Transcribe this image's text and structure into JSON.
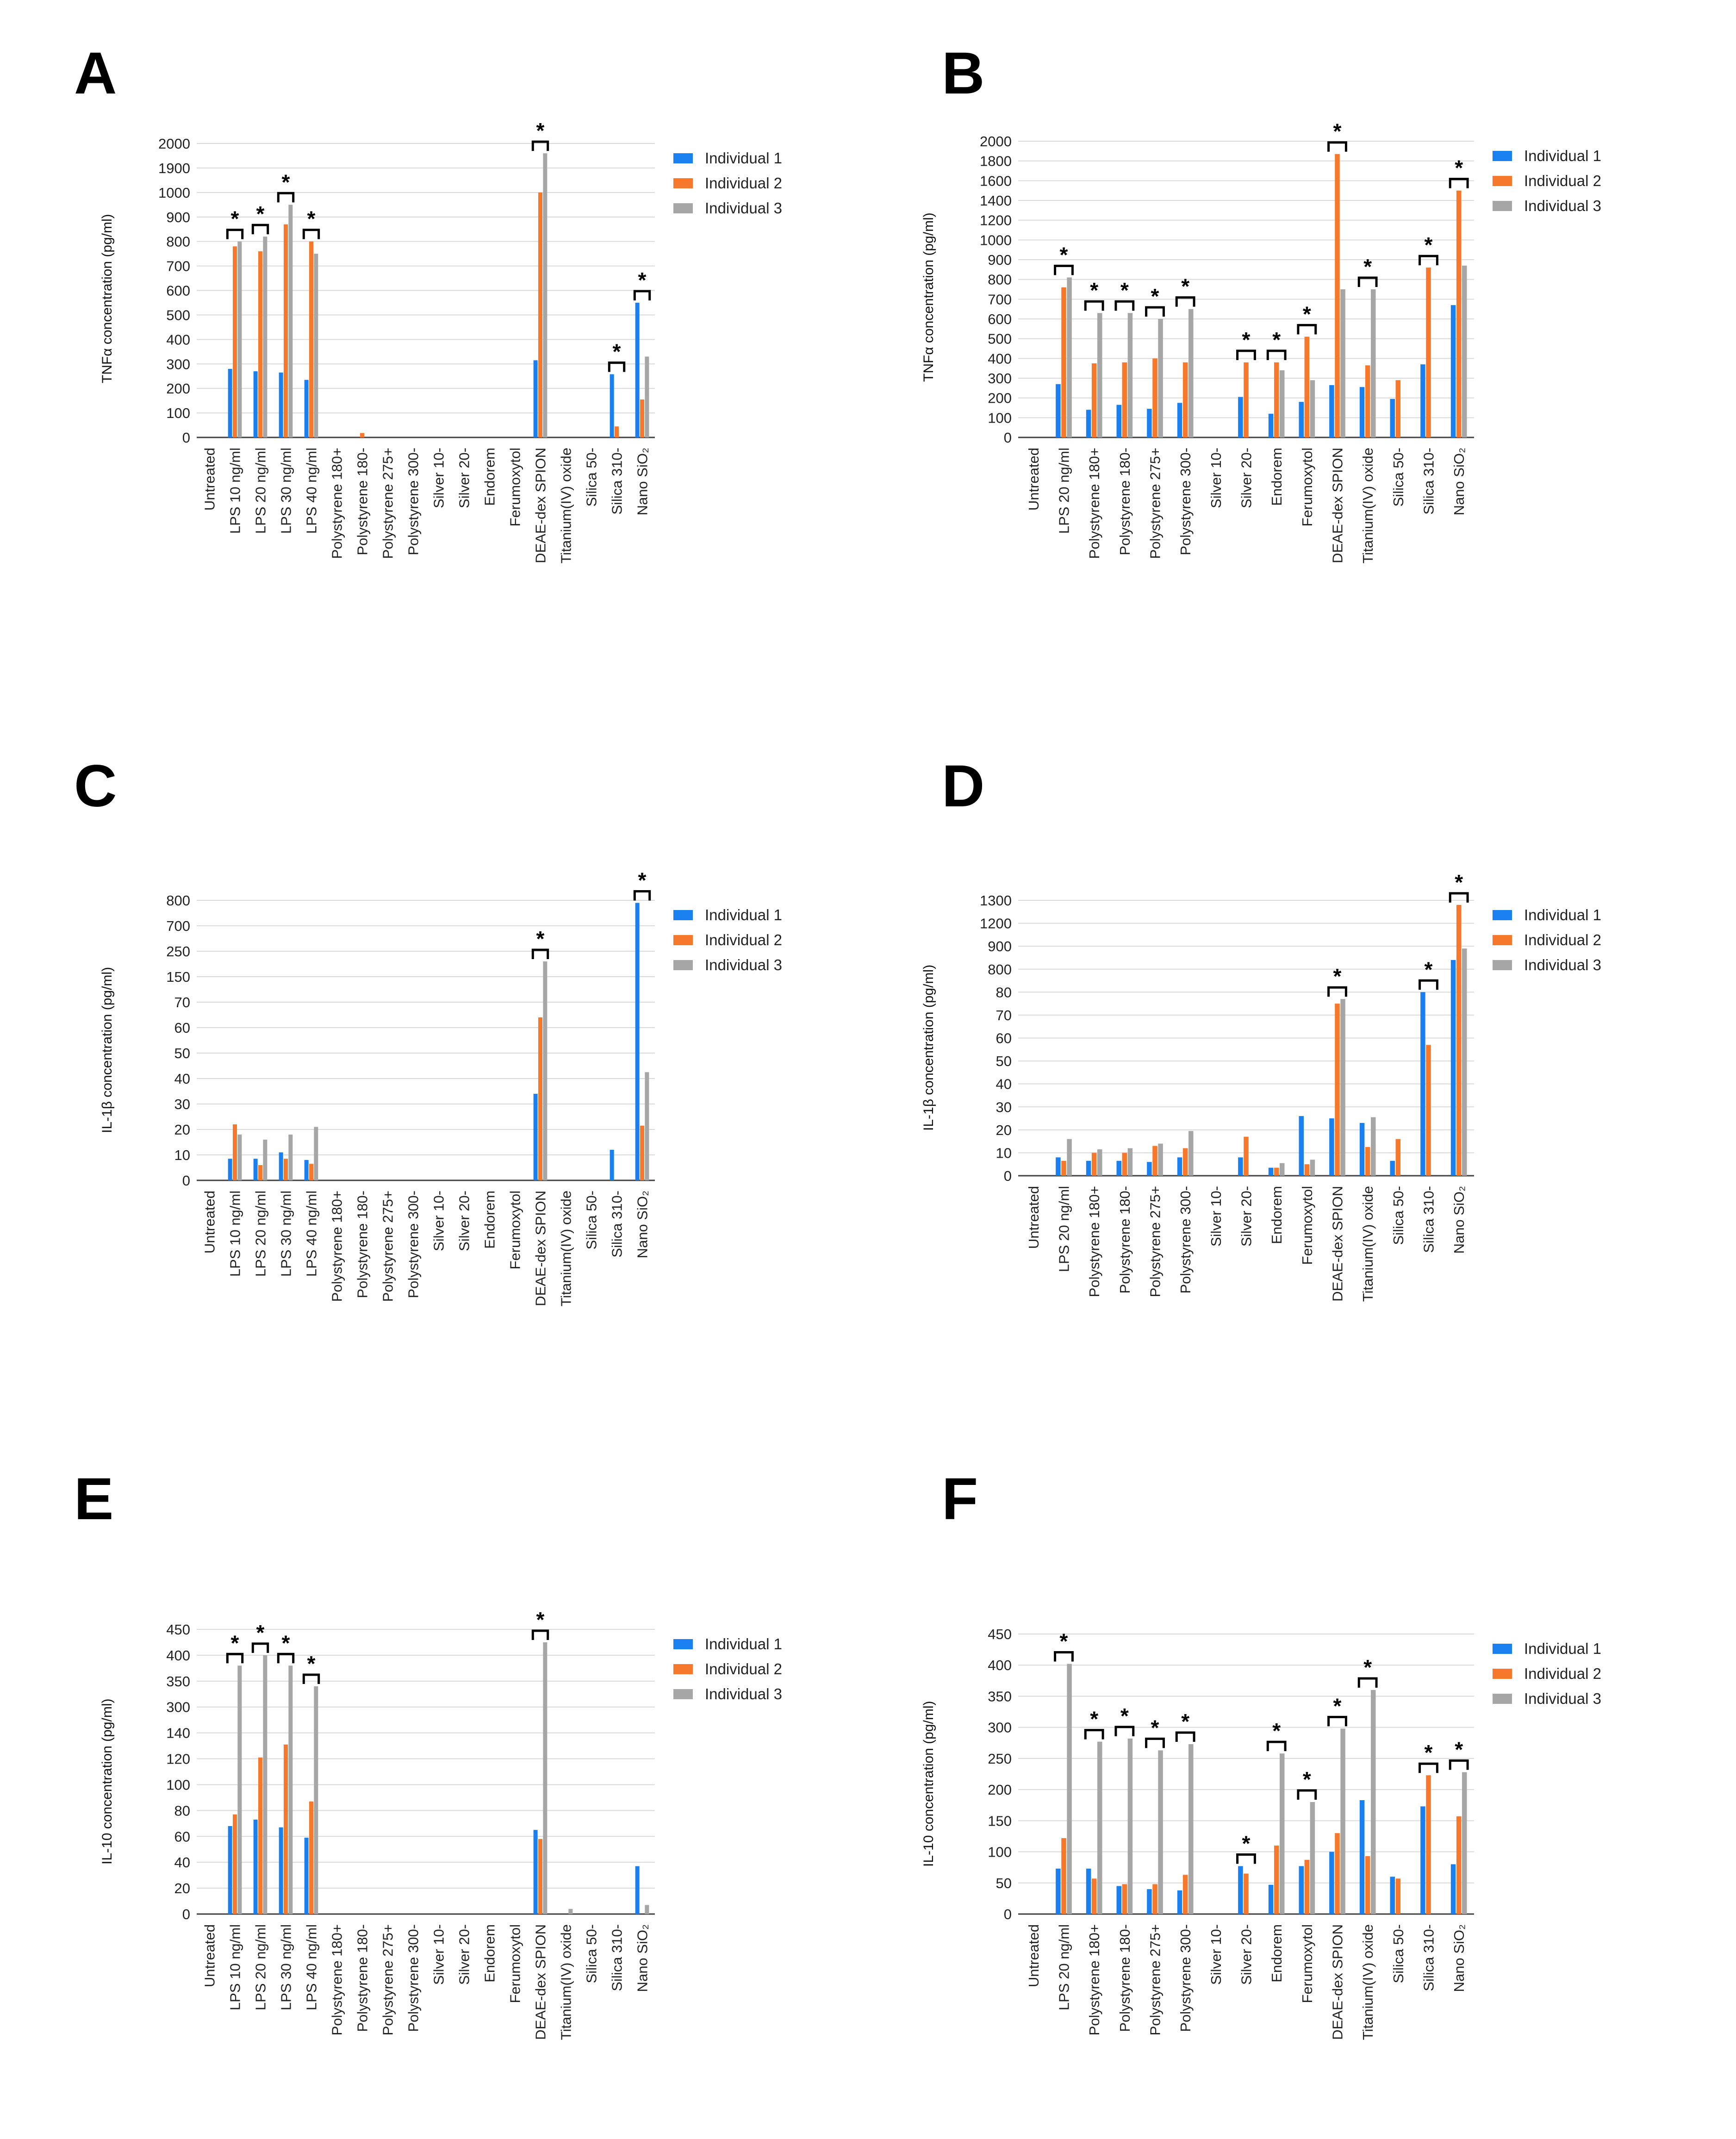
{
  "colors": {
    "s1": "#1a80f0",
    "s2": "#f5782c",
    "s3": "#a6a6a6",
    "grid": "#d9d9d9",
    "axis": "#404040"
  },
  "legend": [
    "Individual 1",
    "Individual 2",
    "Individual 3"
  ],
  "panels": [
    {
      "id": "A",
      "label": "A",
      "ylabel": "TNFα concentration (pg/ml)",
      "legend": [
        "Individual 1",
        "Individual 2",
        "Individual 3"
      ],
      "chart_data": {
        "type": "bar",
        "ylabel": "TNFα concentration (pg/ml)",
        "y_ticks": [
          0,
          100,
          200,
          300,
          400,
          500,
          600,
          700,
          800,
          900,
          1000,
          1900,
          2000
        ],
        "categories": [
          "Untreated",
          "LPS 10 ng/ml",
          "LPS 20 ng/ml",
          "LPS 30 ng/ml",
          "LPS 40 ng/ml",
          "Polystyrene 180+",
          "Polystyrene 180-",
          "Polystyrene 275+",
          "Polystyrene 300-",
          "Silver 10-",
          "Silver 20-",
          "Endorem",
          "Ferumoxytol",
          "DEAE-dex SPION",
          "Titanium(IV) oxide",
          "Silica 50-",
          "Silica 310-",
          "Nano SiO₂"
        ],
        "series": [
          {
            "name": "Individual 1",
            "values": [
              0,
              280,
              270,
              265,
              235,
              0,
              0,
              0,
              0,
              0,
              0,
              0,
              0,
              315,
              0,
              0,
              258,
              550
            ]
          },
          {
            "name": "Individual 2",
            "values": [
              0,
              780,
              760,
              870,
              800,
              0,
              18,
              0,
              0,
              0,
              0,
              0,
              0,
              1000,
              0,
              0,
              45,
              155
            ]
          },
          {
            "name": "Individual 3",
            "values": [
              0,
              800,
              820,
              950,
              750,
              0,
              0,
              0,
              0,
              0,
              0,
              0,
              0,
              1960,
              0,
              0,
              0,
              330
            ]
          }
        ],
        "significance": [
          1,
          2,
          3,
          4,
          13,
          16,
          17
        ]
      }
    },
    {
      "id": "B",
      "label": "B",
      "ylabel": "TNFα concentration (pg/ml)",
      "legend": [
        "Individual 1",
        "Individual 2",
        "Individual 3"
      ],
      "chart_data": {
        "type": "bar",
        "ylabel": "TNFα concentration (pg/ml)",
        "y_ticks": [
          0,
          100,
          200,
          300,
          400,
          500,
          600,
          700,
          800,
          900,
          1000,
          1200,
          1400,
          1600,
          1800,
          2000
        ],
        "categories": [
          "Untreated",
          "LPS 20 ng/ml",
          "Polystyrene 180+",
          "Polystyrene 180-",
          "Polystyrene 275+",
          "Polystyrene 300-",
          "Silver 10-",
          "Silver 20-",
          "Endorem",
          "Ferumoxytol",
          "DEAE-dex SPION",
          "Titanium(IV) oxide",
          "Silica 50-",
          "Silica 310-",
          "Nano SiO₂"
        ],
        "series": [
          {
            "name": "Individual 1",
            "values": [
              0,
              270,
              140,
              165,
              145,
              175,
              0,
              205,
              120,
              180,
              265,
              255,
              195,
              370,
              670
            ]
          },
          {
            "name": "Individual 2",
            "values": [
              0,
              760,
              375,
              380,
              400,
              380,
              0,
              380,
              380,
              510,
              1870,
              365,
              290,
              860,
              1500
            ]
          },
          {
            "name": "Individual 3",
            "values": [
              0,
              810,
              630,
              630,
              600,
              650,
              0,
              0,
              340,
              290,
              750,
              750,
              0,
              0,
              870
            ]
          }
        ],
        "significance": [
          1,
          2,
          3,
          4,
          5,
          7,
          8,
          9,
          10,
          11,
          13,
          14
        ]
      }
    },
    {
      "id": "C",
      "label": "C",
      "ylabel": "IL-1β concentration (pg/ml)",
      "legend": [
        "Individual 1",
        "Individual 2",
        "Individual 3"
      ],
      "chart_data": {
        "type": "bar",
        "ylabel": "IL-1β concentration (pg/ml)",
        "y_ticks": [
          0,
          10,
          20,
          30,
          40,
          50,
          60,
          70,
          150,
          250,
          700,
          800
        ],
        "categories": [
          "Untreated",
          "LPS 10 ng/ml",
          "LPS 20 ng/ml",
          "LPS 30 ng/ml",
          "LPS 40 ng/ml",
          "Polystyrene 180+",
          "Polystyrene 180-",
          "Polystyrene 275+",
          "Polystyrene 300-",
          "Silver 10-",
          "Silver 20-",
          "Endorem",
          "Ferumoxytol",
          "DEAE-dex SPION",
          "Titanium(IV) oxide",
          "Silica 50-",
          "Silica 310-",
          "Nano SiO₂"
        ],
        "series": [
          {
            "name": "Individual 1",
            "values": [
              0,
              8.5,
              8.5,
              11,
              8,
              0,
              0,
              0,
              0,
              0,
              0,
              0,
              0,
              34,
              0,
              0,
              12,
              790
            ]
          },
          {
            "name": "Individual 2",
            "values": [
              0,
              22,
              6,
              8.5,
              6.5,
              0,
              0,
              0,
              0,
              0,
              0,
              0,
              0,
              64,
              0,
              0,
              0,
              21.5
            ]
          },
          {
            "name": "Individual 3",
            "values": [
              0,
              18,
              16,
              18,
              21,
              0,
              0,
              0,
              0,
              0,
              0,
              0,
              0,
              210,
              0,
              0,
              0,
              42.5
            ]
          }
        ],
        "significance": [
          13,
          17
        ]
      }
    },
    {
      "id": "D",
      "label": "D",
      "ylabel": "IL-1β concentration (pg/ml)",
      "legend": [
        "Individual 1",
        "Individual 2",
        "Individual 3"
      ],
      "chart_data": {
        "type": "bar",
        "ylabel": "IL-1β concentration (pg/ml)",
        "y_ticks": [
          0,
          10,
          20,
          30,
          40,
          50,
          60,
          70,
          80,
          800,
          900,
          1200,
          1300
        ],
        "categories": [
          "Untreated",
          "LPS 20 ng/ml",
          "Polystyrene 180+",
          "Polystyrene 180-",
          "Polystyrene 275+",
          "Polystyrene 300-",
          "Silver 10-",
          "Silver 20-",
          "Endorem",
          "Ferumoxytol",
          "DEAE-dex SPION",
          "Titanium(IV) oxide",
          "Silica 50-",
          "Silica 310-",
          "Nano SiO₂"
        ],
        "series": [
          {
            "name": "Individual 1",
            "values": [
              0,
              8,
              6.5,
              6.5,
              6,
              8,
              0,
              8,
              3.5,
              26,
              25,
              23,
              6.5,
              81,
              840
            ]
          },
          {
            "name": "Individual 2",
            "values": [
              0,
              6.5,
              10,
              10,
              13,
              12,
              0,
              17,
              3.5,
              5,
              75,
              12.5,
              16,
              57,
              1280
            ]
          },
          {
            "name": "Individual 3",
            "values": [
              0,
              16,
              11.5,
              12,
              14,
              19.5,
              0,
              0,
              5.5,
              7,
              77,
              25.5,
              0,
              0,
              890
            ]
          }
        ],
        "significance": [
          10,
          13,
          14
        ]
      }
    },
    {
      "id": "E",
      "label": "E",
      "ylabel": "IL-10 concentration (pg/ml)",
      "legend": [
        "Individual 1",
        "Individual 2",
        "Individual 3"
      ],
      "chart_data": {
        "type": "bar",
        "ylabel": "IL-10 concentration (pg/ml)",
        "y_ticks": [
          0,
          20,
          40,
          60,
          80,
          100,
          120,
          140,
          300,
          350,
          400,
          450
        ],
        "categories": [
          "Untreated",
          "LPS 10 ng/ml",
          "LPS 20 ng/ml",
          "LPS 30 ng/ml",
          "LPS 40 ng/ml",
          "Polystyrene 180+",
          "Polystyrene 180-",
          "Polystyrene 275+",
          "Polystyrene 300-",
          "Silver 10-",
          "Silver 20-",
          "Endorem",
          "Ferumoxytol",
          "DEAE-dex SPION",
          "Titanium(IV) oxide",
          "Silica 50-",
          "Silica 310-",
          "Nano SiO₂"
        ],
        "series": [
          {
            "name": "Individual 1",
            "values": [
              0,
              68,
              73,
              67,
              59,
              0,
              0,
              0,
              0,
              0,
              0,
              0,
              0,
              65,
              0,
              0,
              0,
              37
            ]
          },
          {
            "name": "Individual 2",
            "values": [
              0,
              77,
              121,
              131,
              87,
              0,
              0,
              0,
              0,
              0,
              0,
              0,
              0,
              58,
              0,
              0,
              0,
              0
            ]
          },
          {
            "name": "Individual 3",
            "values": [
              0,
              380,
              400,
              380,
              340,
              0,
              0,
              0,
              0,
              0,
              0,
              0,
              0,
              425,
              4,
              0,
              0,
              7
            ]
          }
        ],
        "significance": [
          1,
          2,
          3,
          4,
          13
        ]
      }
    },
    {
      "id": "F",
      "label": "F",
      "ylabel": "IL-10 concentration (pg/ml)",
      "legend": [
        "Individual 1",
        "Individual 2",
        "Individual 3"
      ],
      "chart_data": {
        "type": "bar",
        "ylabel": "IL-10 concentration (pg/ml)",
        "y_ticks": [
          0,
          50,
          100,
          150,
          200,
          250,
          300,
          350,
          400,
          450
        ],
        "categories": [
          "Untreated",
          "LPS 20 ng/ml",
          "Polystyrene 180+",
          "Polystyrene 180-",
          "Polystyrene 275+",
          "Polystyrene 300-",
          "Silver 10-",
          "Silver 20-",
          "Endorem",
          "Ferumoxytol",
          "DEAE-dex SPION",
          "Titanium(IV) oxide",
          "Silica 50-",
          "Silica 310-",
          "Nano SiO₂"
        ],
        "series": [
          {
            "name": "Individual 1",
            "values": [
              0,
              73,
              73,
              45,
              40,
              38,
              0,
              77,
              47,
              77,
              100,
              183,
              60,
              173,
              80
            ]
          },
          {
            "name": "Individual 2",
            "values": [
              0,
              122,
              57,
              48,
              48,
              63,
              0,
              65,
              110,
              87,
              130,
              93,
              57,
              223,
              157
            ]
          },
          {
            "name": "Individual 3",
            "values": [
              0,
              402,
              277,
              282,
              263,
              273,
              0,
              0,
              258,
              180,
              298,
              360,
              0,
              0,
              228
            ]
          }
        ],
        "significance": [
          1,
          2,
          3,
          4,
          5,
          7,
          8,
          9,
          10,
          11,
          13,
          14
        ]
      }
    }
  ]
}
